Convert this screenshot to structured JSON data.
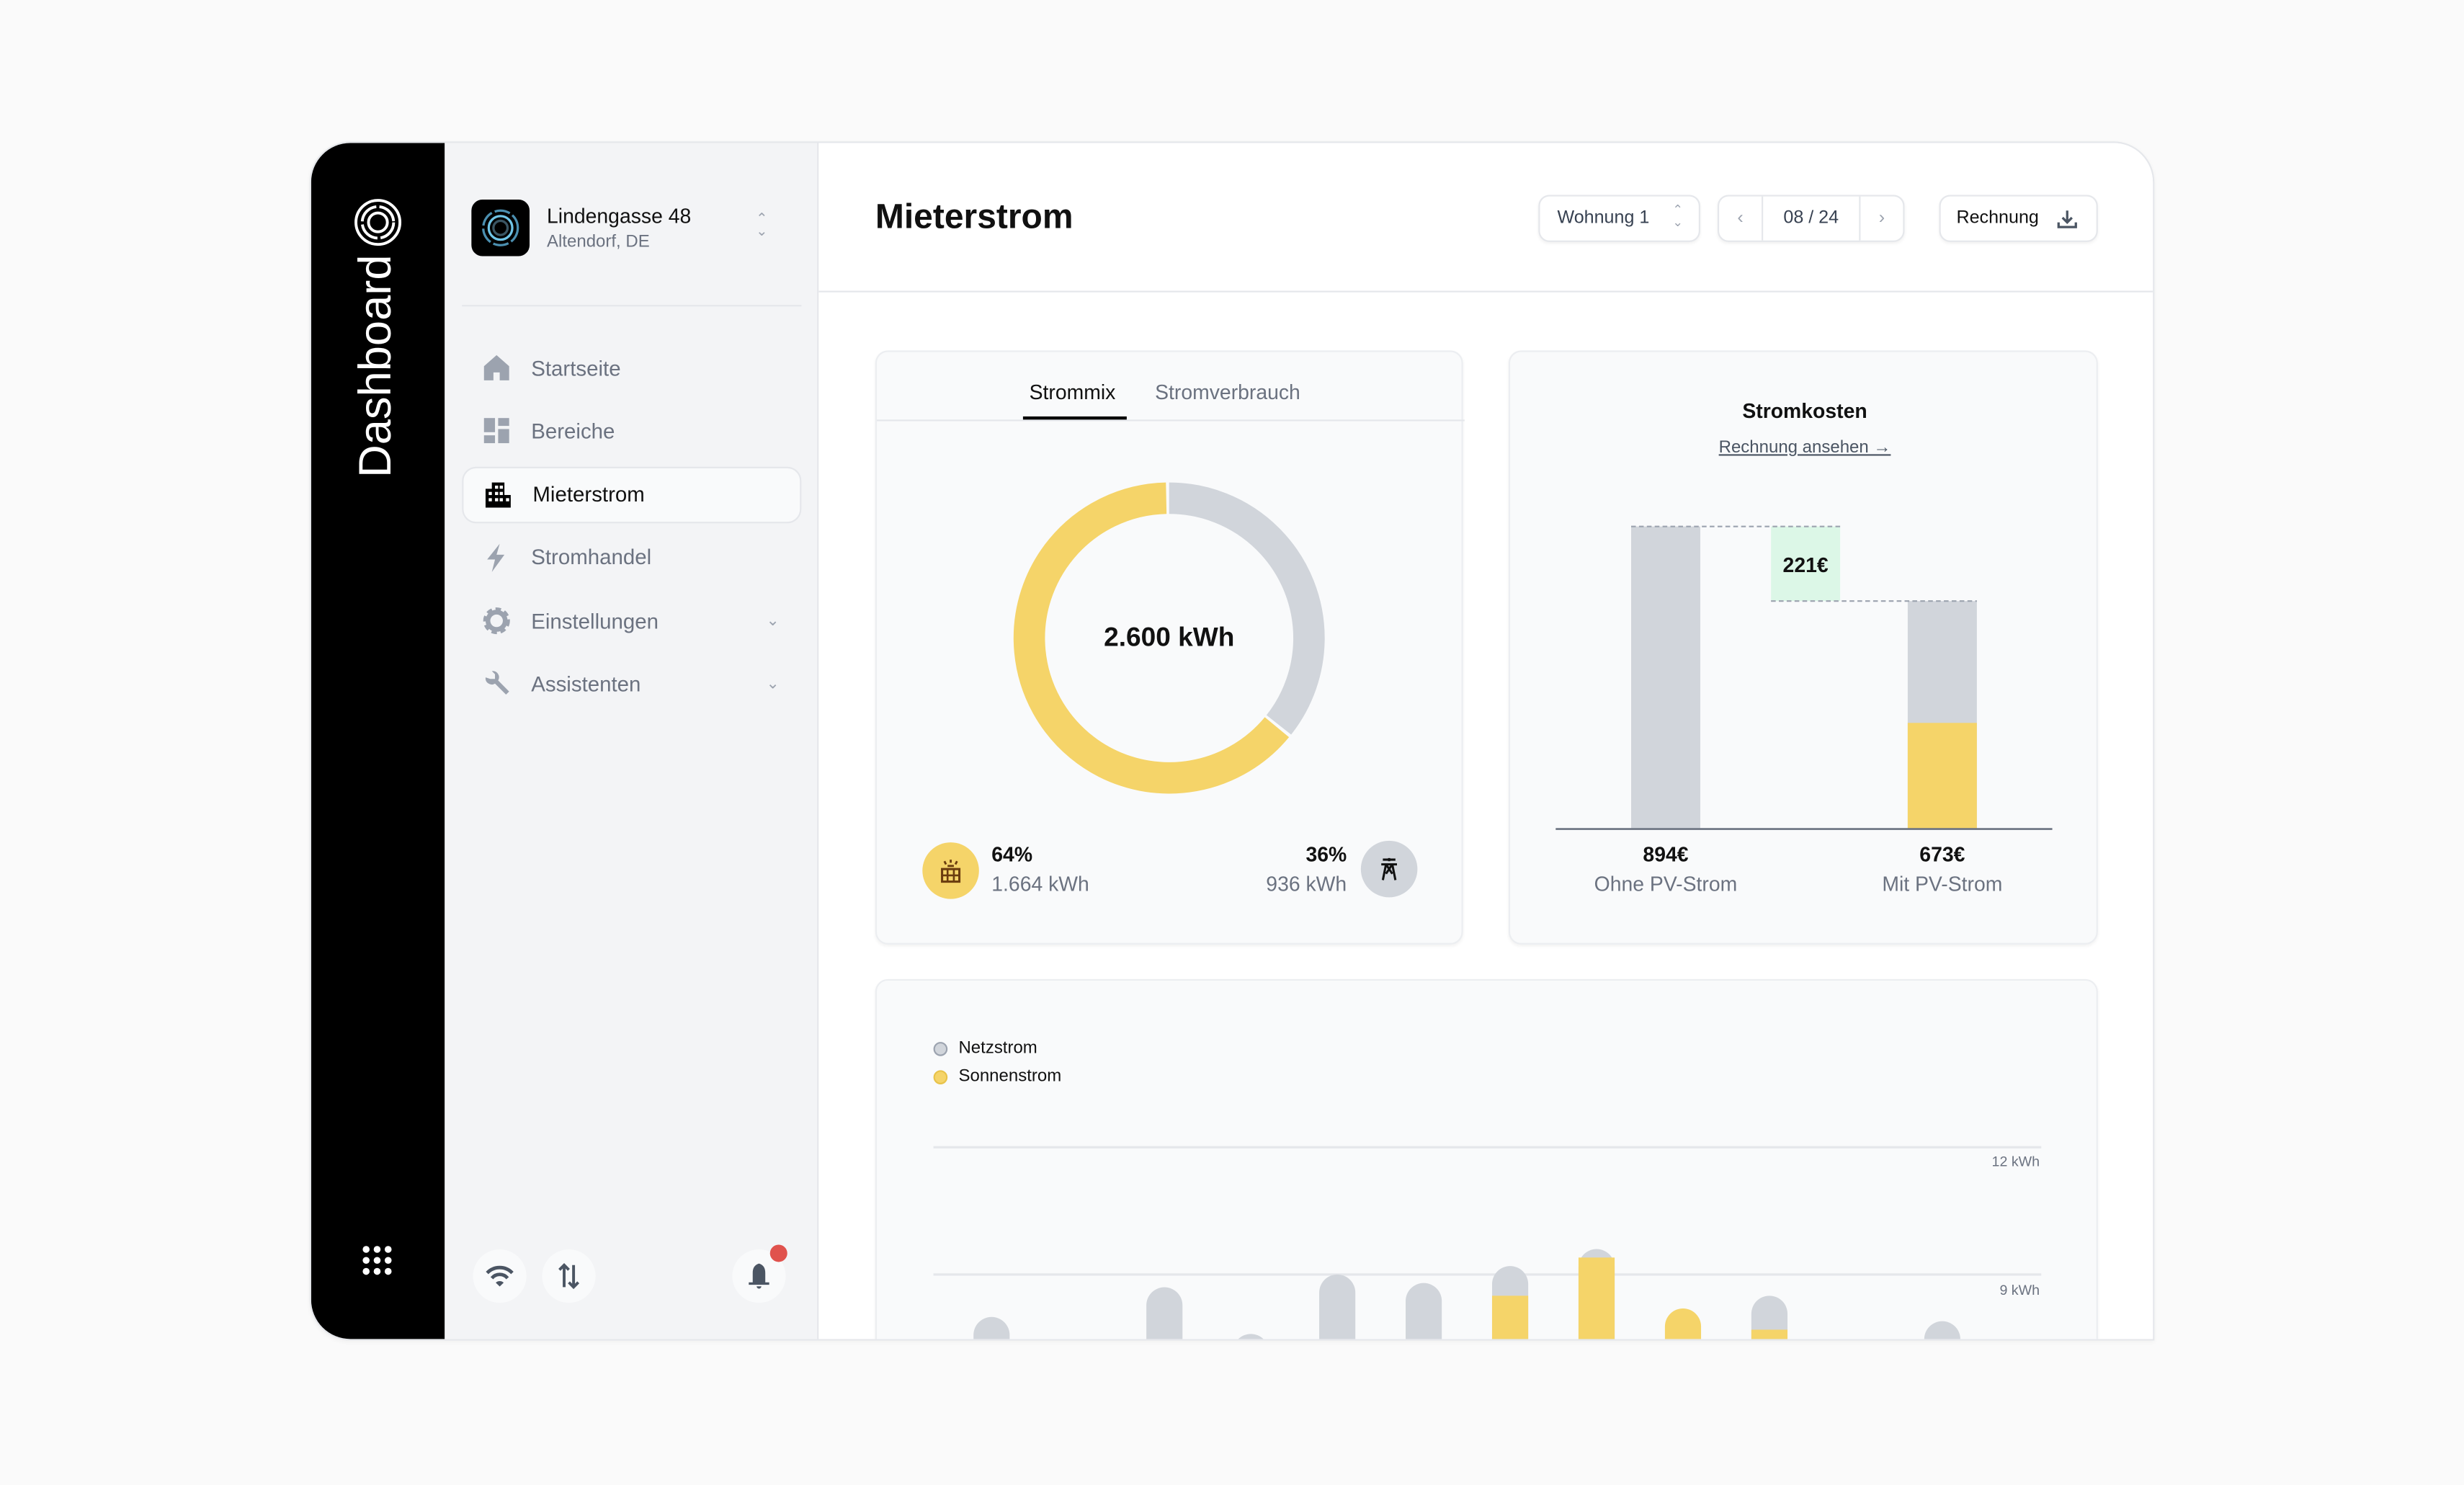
{
  "rail": {
    "title": "Dashboard",
    "logo_icon": "concentric-rings-icon",
    "apps_icon": "grid-dots-icon"
  },
  "property": {
    "name": "Lindengasse 48",
    "location": "Altendorf, DE"
  },
  "nav": [
    {
      "label": "Startseite",
      "icon": "home-icon"
    },
    {
      "label": "Bereiche",
      "icon": "dashboard-tiles-icon"
    },
    {
      "label": "Mieterstrom",
      "icon": "building-icon",
      "active": true
    },
    {
      "label": "Stromhandel",
      "icon": "bolt-icon"
    },
    {
      "label": "Einstellungen",
      "icon": "gear-icon",
      "expandable": true
    },
    {
      "label": "Assistenten",
      "icon": "wrench-icon",
      "expandable": true
    }
  ],
  "footer_icons": [
    "wifi-icon",
    "transfer-arrows-icon",
    "bell-icon"
  ],
  "notification_badge": true,
  "header": {
    "title": "Mieterstrom",
    "unit_select": "Wohnung 1",
    "period": "08 / 24",
    "invoice_button": "Rechnung"
  },
  "mix": {
    "tabs": [
      "Strommix",
      "Stromverbrauch"
    ],
    "active_tab": "Strommix",
    "total": "2.600 kWh",
    "solar": {
      "percent": "64%",
      "kwh": "1.664 kWh",
      "value": 64
    },
    "grid": {
      "percent": "36%",
      "kwh": "936 kWh",
      "value": 36
    }
  },
  "costs": {
    "title": "Stromkosten",
    "link": "Rechnung ansehen →",
    "savings": "221€",
    "bars": [
      {
        "value_label": "894€",
        "label": "Ohne PV-Strom",
        "value": 894,
        "solar": 0
      },
      {
        "value_label": "673€",
        "label": "Mit PV-Strom",
        "value": 673,
        "solar": 312
      }
    ]
  },
  "colors": {
    "solar": "#f5d469",
    "grid": "#d1d5db",
    "savings": "#dcf7e7",
    "accent": "#000000",
    "badge": "#e0524d"
  },
  "chart_data": {
    "type": "bar",
    "stacked": true,
    "legend": [
      "Netzstrom",
      "Sonnenstrom"
    ],
    "legend_placement": "top-left",
    "y_ticks": [
      "12 kWh",
      "9 kWh"
    ],
    "y_tick_values": [
      12,
      9
    ],
    "bars": [
      {
        "total": 8.0,
        "sonnenstrom": null
      },
      {
        "total": null,
        "sonnenstrom": null
      },
      {
        "total": 8.7,
        "sonnenstrom": null
      },
      {
        "total": 7.6,
        "sonnenstrom": null
      },
      {
        "total": 9.0,
        "sonnenstrom": null
      },
      {
        "total": 8.8,
        "sonnenstrom": null
      },
      {
        "total": 9.2,
        "sonnenstrom": 8.5
      },
      {
        "total": 9.6,
        "sonnenstrom": 9.4
      },
      {
        "total": 8.2,
        "sonnenstrom": 8.2
      },
      {
        "total": 8.5,
        "sonnenstrom": 7.7
      },
      {
        "total": null,
        "sonnenstrom": null
      },
      {
        "total": 7.9,
        "sonnenstrom": null
      }
    ]
  }
}
